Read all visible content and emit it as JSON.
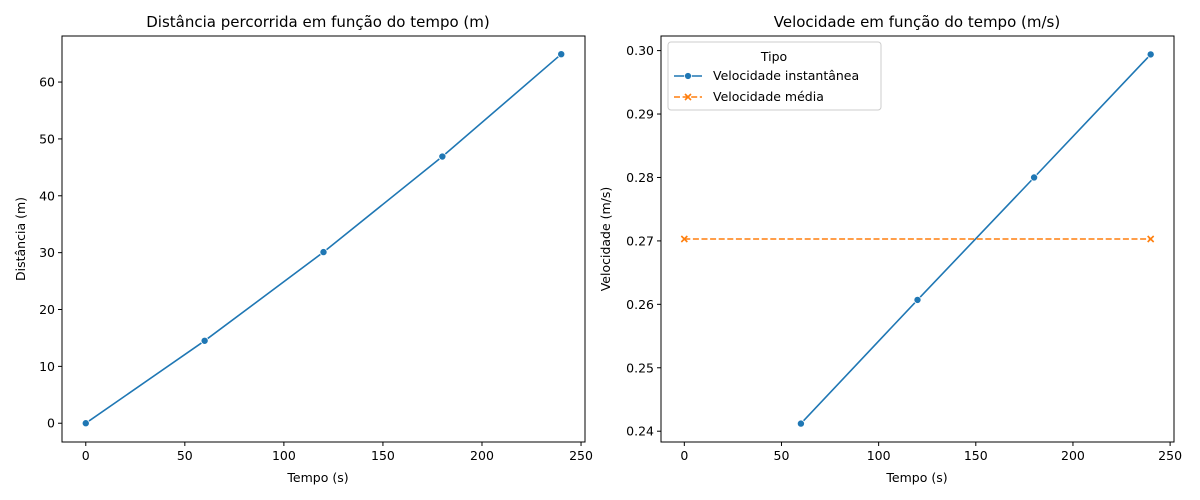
{
  "chart_data": [
    {
      "type": "line",
      "title": "Distância percorrida em função do tempo (m)",
      "xlabel": "Tempo (s)",
      "ylabel": "Distância (m)",
      "xlim": [
        -12,
        252
      ],
      "ylim": [
        -3.3,
        68.1
      ],
      "xticks": [
        0,
        50,
        100,
        150,
        200,
        250
      ],
      "yticks": [
        0,
        10,
        20,
        30,
        40,
        50,
        60
      ],
      "grid": false,
      "series": [
        {
          "color": "#1f77b4",
          "marker": "circle",
          "linestyle": "solid",
          "x": [
            0,
            60,
            120,
            180,
            240
          ],
          "y": [
            0,
            14.5,
            30.1,
            46.9,
            64.9
          ]
        }
      ]
    },
    {
      "type": "line",
      "title": "Velocidade em função do tempo (m/s)",
      "xlabel": "Tempo (s)",
      "ylabel": "Velocidade (m/s)",
      "xlim": [
        -12,
        252
      ],
      "ylim": [
        0.2383,
        0.3023
      ],
      "xticks": [
        0,
        50,
        100,
        150,
        200,
        250
      ],
      "yticks": [
        0.24,
        0.25,
        0.26,
        0.27,
        0.28,
        0.29,
        0.3
      ],
      "ytick_labels": [
        "0.24",
        "0.25",
        "0.26",
        "0.27",
        "0.28",
        "0.29",
        "0.30"
      ],
      "grid": false,
      "legend": {
        "title": "Tipo",
        "placement": "top-left"
      },
      "series": [
        {
          "name": "Velocidade instantânea",
          "color": "#1f77b4",
          "marker": "circle",
          "linestyle": "solid",
          "x": [
            60,
            120,
            180,
            240
          ],
          "y": [
            0.2412,
            0.2607,
            0.28,
            0.2994
          ]
        },
        {
          "name": "Velocidade média",
          "color": "#ff7f0e",
          "marker": "x",
          "linestyle": "dashed",
          "x": [
            0,
            240
          ],
          "y": [
            0.2703,
            0.2703
          ]
        }
      ]
    }
  ]
}
